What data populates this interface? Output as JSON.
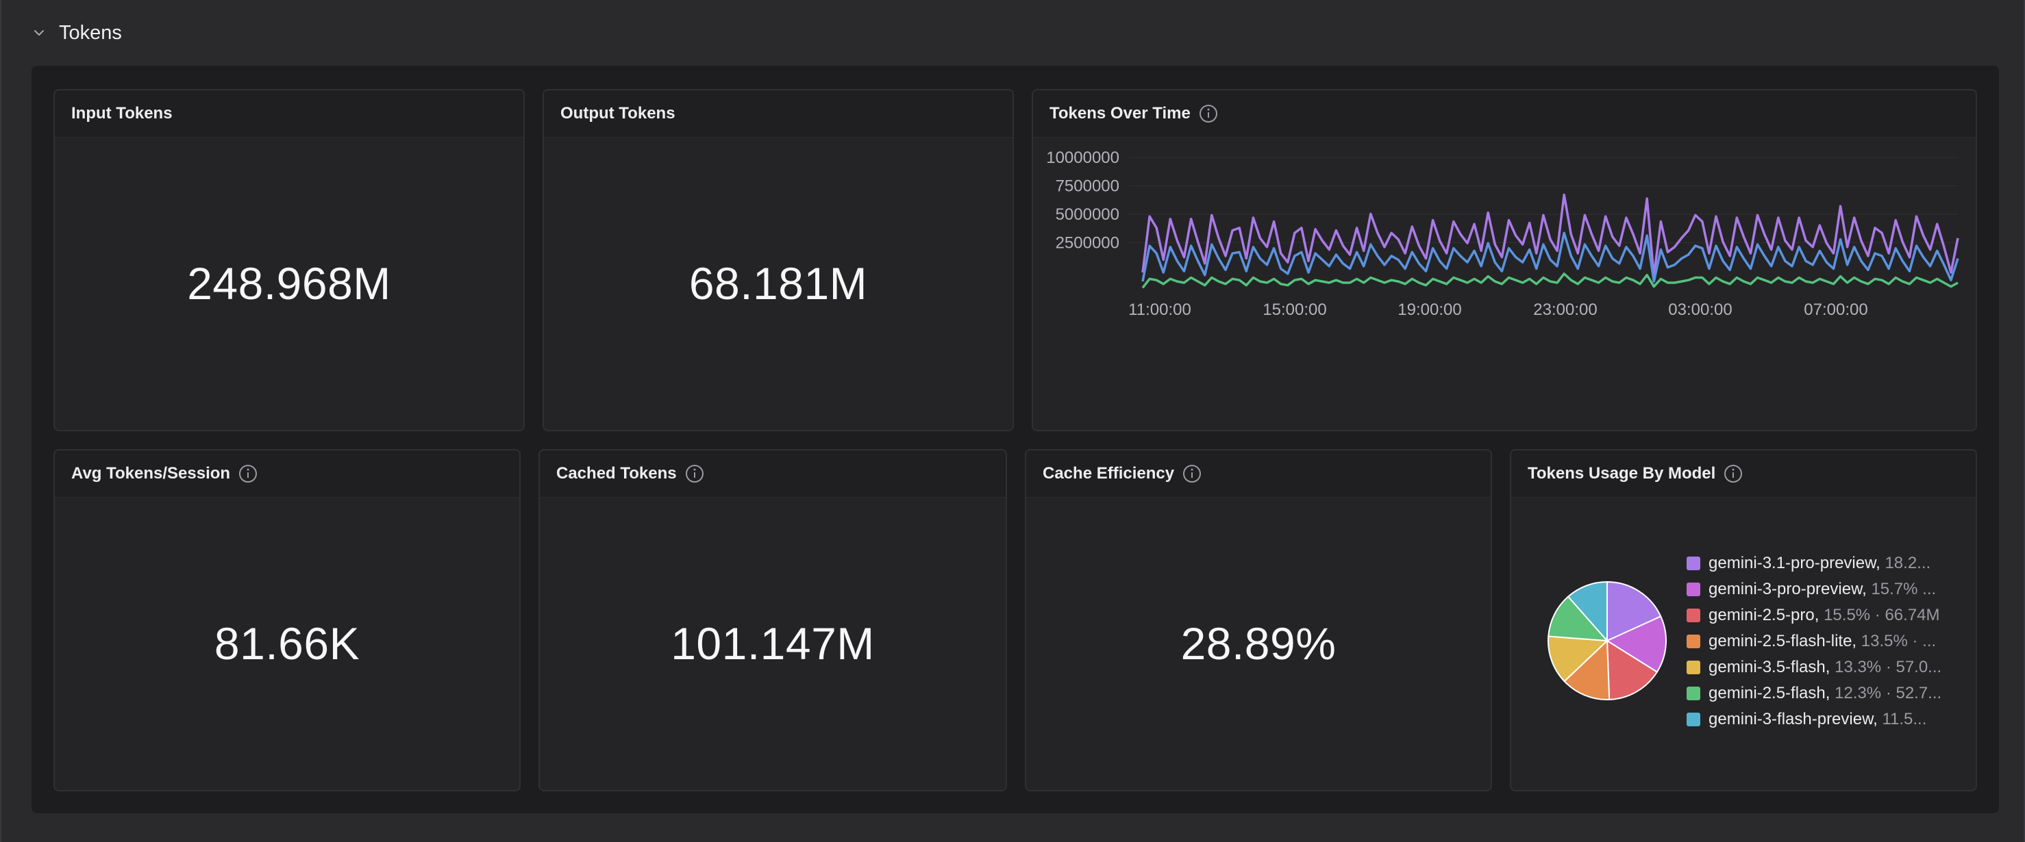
{
  "section": {
    "title": "Tokens"
  },
  "panels": {
    "input": {
      "title": "Input Tokens",
      "value": "248.968M"
    },
    "output": {
      "title": "Output Tokens",
      "value": "68.181M"
    },
    "over_time": {
      "title": "Tokens Over Time"
    },
    "avg": {
      "title": "Avg Tokens/Session",
      "value": "81.66K"
    },
    "cached": {
      "title": "Cached Tokens",
      "value": "101.147M"
    },
    "efficiency": {
      "title": "Cache Efficiency",
      "value": "28.89%"
    },
    "by_model": {
      "title": "Tokens Usage By Model"
    }
  },
  "icons": {
    "collapse": "chevron-down-icon",
    "info": "info-icon"
  },
  "chart_data": [
    {
      "type": "line",
      "title": "Tokens Over Time",
      "x_ticks": [
        "11:00:00",
        "15:00:00",
        "19:00:00",
        "23:00:00",
        "03:00:00",
        "07:00:00"
      ],
      "y_ticks": [
        2500000,
        5000000,
        7500000,
        10000000
      ],
      "ylim": [
        0,
        10000000
      ],
      "grid": true,
      "legend": "none",
      "series": [
        {
          "color": "#a97ae8",
          "values": [
            1500000,
            5900000,
            5000000,
            2500000,
            5700000,
            4000000,
            2700000,
            5700000,
            3900000,
            2200000,
            6000000,
            4200000,
            2800000,
            4800000,
            5000000,
            2600000,
            5800000,
            4200000,
            3500000,
            5500000,
            3000000,
            2300000,
            4600000,
            5000000,
            2400000,
            4900000,
            4000000,
            3300000,
            4800000,
            3600000,
            2900000,
            5000000,
            3200000,
            6100000,
            4600000,
            3500000,
            4600000,
            4100000,
            3000000,
            5100000,
            3600000,
            2600000,
            5600000,
            4000000,
            3000000,
            5500000,
            4500000,
            3800000,
            5300000,
            3200000,
            6200000,
            3700000,
            2700000,
            5600000,
            4400000,
            3700000,
            5400000,
            3000000,
            6000000,
            4100000,
            3200000,
            7600000,
            4500000,
            3000000,
            6000000,
            4500000,
            3200000,
            5900000,
            4300000,
            3600000,
            5800000,
            4500000,
            3000000,
            7300000,
            1200000,
            5500000,
            3100000,
            3500000,
            4200000,
            4800000,
            6000000,
            5500000,
            3000000,
            5900000,
            3900000,
            2800000,
            5800000,
            4300000,
            3000000,
            6000000,
            4500000,
            3300000,
            5800000,
            4000000,
            3300000,
            5800000,
            4000000,
            3500000,
            5200000,
            3800000,
            3000000,
            6700000,
            3500000,
            5800000,
            4000000,
            2800000,
            5000000,
            4600000,
            3000000,
            5600000,
            3900000,
            2700000,
            5900000,
            4400000,
            3300000,
            5300000,
            3500000,
            1500000,
            4200000
          ]
        },
        {
          "color": "#5b93e0",
          "values": [
            800000,
            3600000,
            3000000,
            1500000,
            3500000,
            2400000,
            1600000,
            3600000,
            2400000,
            1300000,
            3700000,
            2600000,
            1700000,
            3000000,
            3100000,
            1600000,
            3500000,
            2600000,
            2100000,
            3400000,
            1800000,
            1400000,
            2800000,
            3100000,
            1500000,
            3000000,
            2500000,
            2000000,
            2900000,
            2200000,
            1800000,
            3100000,
            2000000,
            3700000,
            2800000,
            2100000,
            2800000,
            2500000,
            1800000,
            3100000,
            2200000,
            1600000,
            3400000,
            2400000,
            1800000,
            3400000,
            2800000,
            2300000,
            3200000,
            2000000,
            3800000,
            2300000,
            1600000,
            3400000,
            2700000,
            2300000,
            3300000,
            1800000,
            3700000,
            2500000,
            2000000,
            4600000,
            2800000,
            1800000,
            3700000,
            2800000,
            2000000,
            3600000,
            2600000,
            2200000,
            3500000,
            2800000,
            1800000,
            4400000,
            800000,
            3300000,
            1900000,
            2100000,
            2600000,
            2900000,
            3600000,
            3400000,
            1800000,
            3600000,
            2400000,
            1700000,
            3500000,
            2600000,
            1800000,
            3700000,
            2800000,
            2000000,
            3500000,
            2400000,
            2000000,
            3500000,
            2400000,
            2100000,
            3200000,
            2300000,
            1800000,
            4100000,
            2100000,
            3500000,
            2400000,
            1700000,
            3000000,
            2800000,
            1800000,
            3400000,
            2400000,
            1600000,
            3600000,
            2700000,
            2000000,
            3200000,
            2100000,
            900000,
            2600000
          ]
        },
        {
          "color": "#55c27e",
          "values": [
            300000,
            1000000,
            900000,
            600000,
            1000000,
            800000,
            700000,
            1100000,
            800000,
            500000,
            1100000,
            800000,
            600000,
            1000000,
            900000,
            500000,
            1100000,
            800000,
            700000,
            1000000,
            600000,
            500000,
            900000,
            1000000,
            600000,
            900000,
            800000,
            700000,
            900000,
            700000,
            700000,
            1000000,
            700000,
            1100000,
            900000,
            700000,
            900000,
            800000,
            600000,
            1000000,
            700000,
            500000,
            1000000,
            800000,
            600000,
            1100000,
            900000,
            700000,
            1000000,
            700000,
            1200000,
            800000,
            600000,
            1100000,
            900000,
            700000,
            1000000,
            600000,
            1100000,
            800000,
            700000,
            1400000,
            900000,
            600000,
            1100000,
            900000,
            700000,
            1100000,
            800000,
            700000,
            1100000,
            900000,
            600000,
            1300000,
            400000,
            1000000,
            700000,
            700000,
            800000,
            900000,
            1100000,
            1100000,
            600000,
            1100000,
            800000,
            600000,
            1100000,
            800000,
            600000,
            1100000,
            900000,
            700000,
            1100000,
            800000,
            700000,
            1100000,
            800000,
            700000,
            1000000,
            800000,
            600000,
            1200000,
            700000,
            1100000,
            800000,
            600000,
            1000000,
            900000,
            600000,
            1100000,
            800000,
            600000,
            1100000,
            900000,
            700000,
            1000000,
            700000,
            400000,
            700000
          ]
        }
      ]
    },
    {
      "type": "pie",
      "title": "Tokens Usage By Model",
      "legend": "right",
      "slices": [
        {
          "label": "gemini-3.1-pro-preview",
          "percent": 18.2,
          "detail": "18.2...",
          "color": "#a97ae8"
        },
        {
          "label": "gemini-3-pro-preview",
          "percent": 15.7,
          "detail": "15.7% ...",
          "color": "#c566db"
        },
        {
          "label": "gemini-2.5-pro",
          "percent": 15.5,
          "detail": "15.5% · 66.74M",
          "color": "#df6167"
        },
        {
          "label": "gemini-2.5-flash-lite",
          "percent": 13.5,
          "detail": "13.5% · ...",
          "color": "#e58a4a"
        },
        {
          "label": "gemini-3.5-flash",
          "percent": 13.3,
          "detail": "13.3% · 57.0...",
          "color": "#e1b94d"
        },
        {
          "label": "gemini-2.5-flash",
          "percent": 12.3,
          "detail": "12.3% · 52.7...",
          "color": "#5dc27a"
        },
        {
          "label": "gemini-3-flash-preview",
          "percent": 11.5,
          "detail": "11.5...",
          "color": "#52b4ce"
        }
      ]
    }
  ]
}
